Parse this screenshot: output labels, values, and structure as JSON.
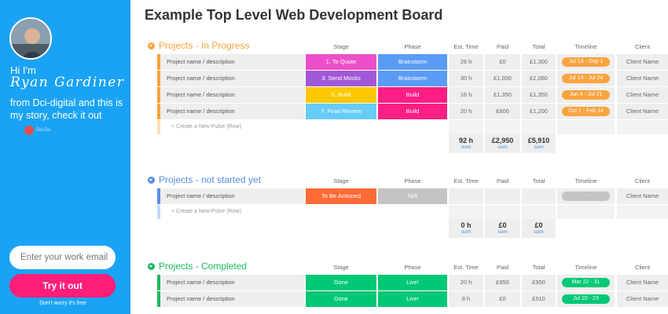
{
  "sidebar": {
    "greeting": "Hi I'm",
    "name": "Ryan Gardiner",
    "tagline": "from Dci-digital and this is my story, check it out",
    "logo_text": "Dci-Dv",
    "email_placeholder": "Enter your work email",
    "cta_label": "Try it out",
    "disclaimer": "Don't worry it's free",
    "bg_color": "#1aa3f4",
    "cta_color": "#ff1e7a"
  },
  "board": {
    "title": "Example Top Level Web Development Board",
    "columns": {
      "stage": "Stage",
      "phase": "Phase",
      "est": "Est. Time",
      "paid": "Paid",
      "total": "Total",
      "timeline": "Timeline",
      "client": "Client"
    },
    "add_row_text": "+ Create a New Pulse (Row)",
    "sum_label": "sum",
    "groups": [
      {
        "title": "Projects - In Progress",
        "color": "#f6a33a",
        "rows": [
          {
            "name": "Project name / description",
            "stage": "1. To Quote",
            "stage_color": "#ec4fc9",
            "phase": "Brainstorm",
            "phase_color": "#5a9cf5",
            "est": "26 h",
            "paid": "£0",
            "total": "£1,300",
            "timeline": "Jul 13 - Sep 1",
            "timeline_color": "#f9a33f",
            "client": "Client Name"
          },
          {
            "name": "Project name / description",
            "stage": "3. Send Mocks",
            "stage_color": "#a158d8",
            "phase": "Brainstorm",
            "phase_color": "#5a9cf5",
            "est": "30 h",
            "paid": "£1,000",
            "total": "£2,060",
            "timeline": "Jul 14 - Jul 24",
            "timeline_color": "#f9a33f",
            "client": "Client Name"
          },
          {
            "name": "Project name / description",
            "stage": "5. Build",
            "stage_color": "#fdc800",
            "phase": "Build",
            "phase_color": "#ff1e84",
            "est": "16 h",
            "paid": "£1,350",
            "total": "£1,350",
            "timeline": "Jun 4 - Jul 21",
            "timeline_color": "#f9a33f",
            "client": "Client Name"
          },
          {
            "name": "Project name / description",
            "stage": "7. Final Review",
            "stage_color": "#66ccf7",
            "phase": "Build",
            "phase_color": "#ff1e84",
            "est": "20 h",
            "paid": "£600",
            "total": "£1,200",
            "timeline": "Oct 1 - Feb 14",
            "timeline_color": "#f9a33f",
            "client": "Client Name"
          }
        ],
        "sums": {
          "est": "92 h",
          "paid": "£2,950",
          "total": "£5,910"
        }
      },
      {
        "title": "Projects - not started yet",
        "color": "#5a8ee8",
        "rows": [
          {
            "name": "Project name / description",
            "stage": "To Be Actioned",
            "stage_color": "#ff6b35",
            "phase": "N/A",
            "phase_color": "#c4c4c4",
            "est": "",
            "paid": "",
            "total": "",
            "timeline": "-",
            "timeline_color": "#c4c4c4",
            "client": "Client Name"
          }
        ],
        "sums": {
          "est": "0 h",
          "paid": "£0",
          "total": "£0"
        }
      },
      {
        "title": "Projects - Completed",
        "color": "#1cb85c",
        "rows": [
          {
            "name": "Project name / description",
            "stage": "Done",
            "stage_color": "#00c875",
            "phase": "Live!",
            "phase_color": "#00c875",
            "est": "20 h",
            "paid": "£950",
            "total": "£950",
            "timeline": "Mar 22 - 31",
            "timeline_color": "#00c875",
            "client": "Client Name"
          },
          {
            "name": "Project name / description",
            "stage": "Done",
            "stage_color": "#00c875",
            "phase": "Live!",
            "phase_color": "#00c875",
            "est": "8 h",
            "paid": "£0",
            "total": "£510",
            "timeline": "Jul 20 - 23",
            "timeline_color": "#00c875",
            "client": "Client Name"
          }
        ]
      }
    ]
  }
}
